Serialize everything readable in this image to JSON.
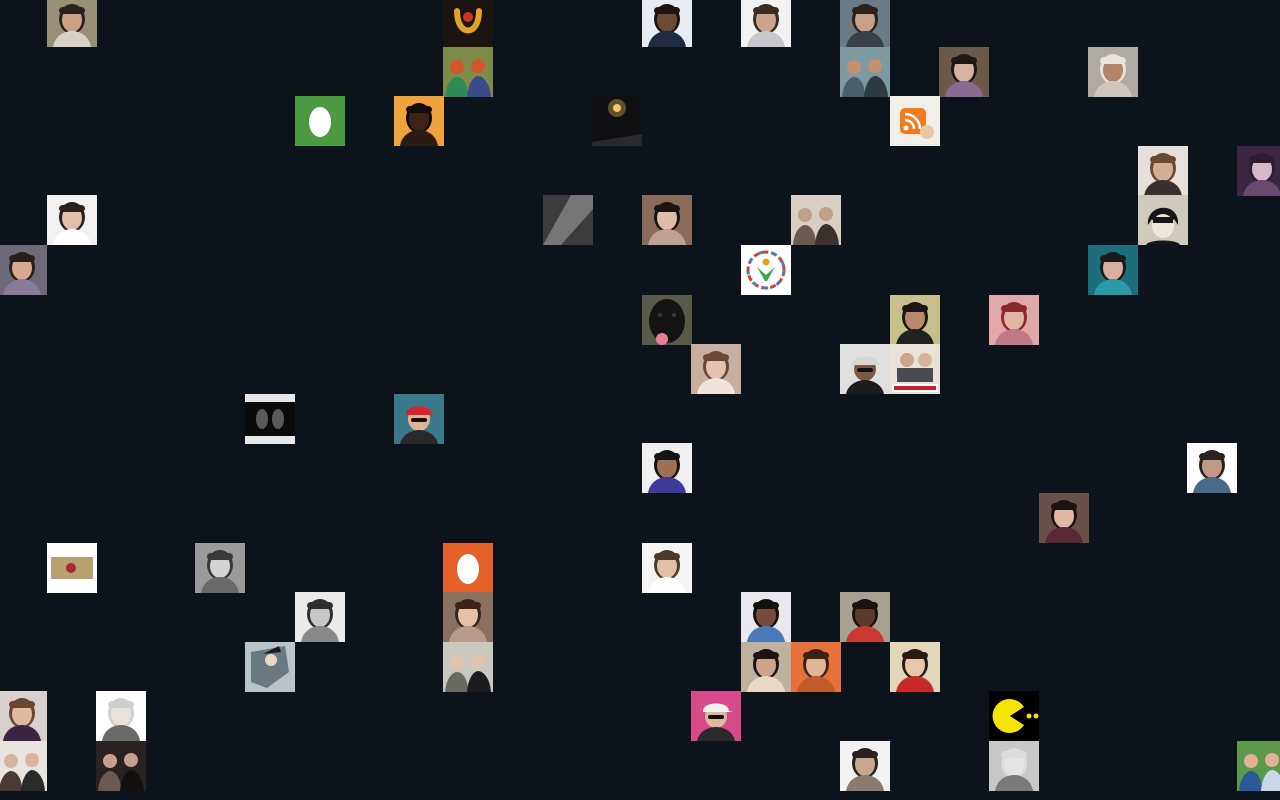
{
  "wall": {
    "background": "#0d131a",
    "tiles": [
      {
        "kind": "person",
        "bg": "#9a9078",
        "skin": "#c9a083",
        "hair": "#2a2420",
        "shirt": "#d8d2c6",
        "col": 1,
        "row": 0
      },
      {
        "kind": "logo-horseshoe",
        "bg": "#1c1410",
        "fg": "#e0a22a",
        "col": 9,
        "row": 0
      },
      {
        "kind": "person",
        "bg": "#e8ecf2",
        "skin": "#6b4a36",
        "hair": "#1c1512",
        "shirt": "#1f2a44",
        "col": 13,
        "row": 0
      },
      {
        "kind": "person",
        "bg": "#f2f2f2",
        "skin": "#c9a38a",
        "hair": "#3b2c22",
        "shirt": "#c7c7cd",
        "col": 15,
        "row": 0
      },
      {
        "kind": "person",
        "bg": "#6c7a86",
        "skin": "#c8a08a",
        "hair": "#2c211b",
        "shirt": "#3a3f48",
        "col": 17,
        "row": 0
      },
      {
        "kind": "group",
        "bg": "#7e8c4a",
        "c1": "#2e8b57",
        "c2": "#d4562c",
        "c3": "#3b4b8a",
        "col": 9,
        "row": 1
      },
      {
        "kind": "group",
        "bg": "#7c9aa0",
        "c1": "#4a5f6a",
        "c2": "#c58f72",
        "c3": "#2d3a44",
        "col": 17,
        "row": 1
      },
      {
        "kind": "person",
        "bg": "#6b5a4a",
        "skin": "#d8b2a0",
        "hair": "#1f1a18",
        "shirt": "#8a6a90",
        "col": 19,
        "row": 1
      },
      {
        "kind": "person",
        "bg": "#b0aaa4",
        "skin": "#b28468",
        "hair": "#e8e2da",
        "shirt": "#cfc7bd",
        "col": 22,
        "row": 1
      },
      {
        "kind": "egg",
        "bg": "#4a9b3f",
        "fg": "#ffffff",
        "col": 6,
        "row": 2
      },
      {
        "kind": "person",
        "bg": "#f0a23c",
        "skin": "#3d2418",
        "hair": "#140c08",
        "shirt": "#2a1c14",
        "col": 8,
        "row": 2
      },
      {
        "kind": "light",
        "bg": "#101012",
        "fg": "#f3c86a",
        "col": 12,
        "row": 2
      },
      {
        "kind": "logo-rss",
        "bg": "#f2efe8",
        "fg": "#f07c1e",
        "col": 18,
        "row": 2
      },
      {
        "kind": "person",
        "bg": "#e6e0da",
        "skin": "#d6ac94",
        "hair": "#6b4a34",
        "shirt": "#38302c",
        "col": 23,
        "row": 3
      },
      {
        "kind": "person",
        "bg": "#3a2840",
        "skin": "#d8b8c8",
        "hair": "#2c1c30",
        "shirt": "#6a4a70",
        "col": 25,
        "row": 3
      },
      {
        "kind": "person",
        "bg": "#f2f2f2",
        "skin": "#e2c0ac",
        "hair": "#2a201c",
        "shirt": "#ffffff",
        "col": 1,
        "row": 4
      },
      {
        "kind": "mono",
        "bg": "#3c3c3c",
        "fg": "#8e8e8e",
        "col": 11,
        "row": 4
      },
      {
        "kind": "person",
        "bg": "#8a6a58",
        "skin": "#e0bca8",
        "hair": "#1a1412",
        "shirt": "#c0a090",
        "col": 13,
        "row": 4
      },
      {
        "kind": "group",
        "bg": "#d8cfc2",
        "c1": "#6a5a52",
        "c2": "#c0a08a",
        "c3": "#3a3230",
        "col": 16,
        "row": 4
      },
      {
        "kind": "cartoon",
        "bg": "#cfcabb",
        "skin": "#f0e6d8",
        "hair": "#18141a",
        "col": 23,
        "row": 4
      },
      {
        "kind": "person",
        "bg": "#6e6a7a",
        "skin": "#d8a890",
        "hair": "#2a1e1c",
        "shirt": "#8a7a9a",
        "col": 0,
        "row": 5
      },
      {
        "kind": "logo-ring",
        "bg": "#ffffff",
        "col": 15,
        "row": 5
      },
      {
        "kind": "person",
        "bg": "#1c6e7a",
        "skin": "#d6b09c",
        "hair": "#1a1a1e",
        "shirt": "#2a9aa8",
        "col": 22,
        "row": 5
      },
      {
        "kind": "dog",
        "bg": "#5a5a48",
        "fg": "#141414",
        "col": 13,
        "row": 6
      },
      {
        "kind": "person",
        "bg": "#c8c08c",
        "skin": "#b88a6c",
        "hair": "#1c1614",
        "shirt": "#222222",
        "col": 18,
        "row": 6
      },
      {
        "kind": "person",
        "bg": "#e0a8a8",
        "skin": "#e2b4a6",
        "hair": "#8a2a2a",
        "shirt": "#c07a84",
        "col": 20,
        "row": 6
      },
      {
        "kind": "person",
        "bg": "#c8b0a0",
        "skin": "#e6c2ae",
        "hair": "#6a4a36",
        "shirt": "#f0e4da",
        "col": 14,
        "row": 7
      },
      {
        "kind": "cap-person",
        "bg": "#e0e0e0",
        "skin": "#7a5a46",
        "cap": "#d6d6d6",
        "shirt": "#1c1c1c",
        "col": 17,
        "row": 7
      },
      {
        "kind": "forza",
        "bg": "#e8e2d8",
        "fg": "#c81e2e",
        "col": 18,
        "row": 7
      },
      {
        "kind": "mono-door",
        "bg": "#0a0a0a",
        "fg": "#e8e8e8",
        "col": 5,
        "row": 8
      },
      {
        "kind": "cap-person",
        "bg": "#3a7a8a",
        "skin": "#e0b296",
        "cap": "#d8242c",
        "shirt": "#2a2a2a",
        "col": 8,
        "row": 8
      },
      {
        "kind": "person",
        "bg": "#f0f0f0",
        "skin": "#a07052",
        "hair": "#141414",
        "shirt": "#3e3a9a",
        "col": 13,
        "row": 9
      },
      {
        "kind": "person",
        "bg": "#ffffff",
        "skin": "#c09a84",
        "hair": "#2a221e",
        "shirt": "#4a6a8a",
        "col": 24,
        "row": 9
      },
      {
        "kind": "person",
        "bg": "#6a4e48",
        "skin": "#e0b8a4",
        "hair": "#1c1412",
        "shirt": "#5a2a34",
        "col": 21,
        "row": 10
      },
      {
        "kind": "card",
        "bg": "#ffffff",
        "fg": "#b8a070",
        "col": 1,
        "row": 11
      },
      {
        "kind": "person",
        "bg": "#9a9a9a",
        "skin": "#d4d4d4",
        "hair": "#3a3a3a",
        "shirt": "#6a6a6a",
        "col": 4,
        "row": 11
      },
      {
        "kind": "egg",
        "bg": "#e4612a",
        "fg": "#ffffff",
        "col": 9,
        "row": 11
      },
      {
        "kind": "person",
        "bg": "#f4f4f4",
        "skin": "#e2c0a8",
        "hair": "#4a3a2a",
        "shirt": "#ffffff",
        "col": 13,
        "row": 11
      },
      {
        "kind": "person",
        "bg": "#eaeaea",
        "skin": "#c8c8c8",
        "hair": "#2e2e2e",
        "shirt": "#8a8a8a",
        "col": 6,
        "row": 12
      },
      {
        "kind": "person",
        "bg": "#8a7060",
        "skin": "#e6c0a8",
        "hair": "#3a241a",
        "shirt": "#b89a8a",
        "col": 9,
        "row": 12
      },
      {
        "kind": "person",
        "bg": "#e8e8ee",
        "skin": "#7a4a3a",
        "hair": "#14100e",
        "shirt": "#4a7ab8",
        "col": 15,
        "row": 12
      },
      {
        "kind": "person",
        "bg": "#a8a090",
        "skin": "#5a3a2a",
        "hair": "#1a1210",
        "shirt": "#c83a32",
        "col": 17,
        "row": 12
      },
      {
        "kind": "anime",
        "bg": "#b8c4c8",
        "fg": "#2a3a48",
        "col": 5,
        "row": 13
      },
      {
        "kind": "group",
        "bg": "#c8c8c0",
        "c1": "#6a6a62",
        "c2": "#e0c4b0",
        "c3": "#1c1c20",
        "col": 9,
        "row": 13
      },
      {
        "kind": "person",
        "bg": "#c0b0a0",
        "skin": "#d0a48a",
        "hair": "#1a1412",
        "shirt": "#e8d8c8",
        "col": 15,
        "row": 13
      },
      {
        "kind": "person",
        "bg": "#e8703a",
        "skin": "#e2b496",
        "hair": "#3a2418",
        "shirt": "#c25a2c",
        "col": 16,
        "row": 13
      },
      {
        "kind": "person",
        "bg": "#e0d8b8",
        "skin": "#e6c8a8",
        "hair": "#2a1a14",
        "shirt": "#c82a2a",
        "col": 18,
        "row": 13
      },
      {
        "kind": "person",
        "bg": "#d8d0cc",
        "skin": "#e0b8a0",
        "hair": "#6a4632",
        "shirt": "#3a2440",
        "col": 0,
        "row": 14
      },
      {
        "kind": "person",
        "bg": "#ffffff",
        "skin": "#e8e2da",
        "hair": "#cfcfcf",
        "shirt": "#6a6a6a",
        "col": 2,
        "row": 14
      },
      {
        "kind": "cap-person",
        "bg": "#d84a8a",
        "skin": "#e0b8a0",
        "cap": "#f0f0f0",
        "shirt": "#2a2a2a",
        "col": 14,
        "row": 14
      },
      {
        "kind": "pacman",
        "bg": "#000000",
        "fg": "#f5e400",
        "col": 20,
        "row": 14
      },
      {
        "kind": "group",
        "bg": "#e8e4e0",
        "c1": "#4a3a34",
        "c2": "#d8b4a0",
        "c3": "#2a2a2a",
        "col": 0,
        "row": 15
      },
      {
        "kind": "group",
        "bg": "#2a2220",
        "c1": "#6a5a52",
        "c2": "#c8a090",
        "c3": "#141010",
        "col": 2,
        "row": 15
      },
      {
        "kind": "person",
        "bg": "#f2f2f2",
        "skin": "#c8a890",
        "hair": "#2a2220",
        "shirt": "#8a7a70",
        "col": 17,
        "row": 15
      },
      {
        "kind": "person",
        "bg": "#c8c8c8",
        "skin": "#e4e4e4",
        "hair": "#dcdcdc",
        "shirt": "#7a7a7a",
        "col": 20,
        "row": 15
      },
      {
        "kind": "group",
        "bg": "#5a9a4a",
        "c1": "#2a5a9a",
        "c2": "#e0b098",
        "c3": "#c8d8e8",
        "col": 25,
        "row": 15
      }
    ]
  }
}
